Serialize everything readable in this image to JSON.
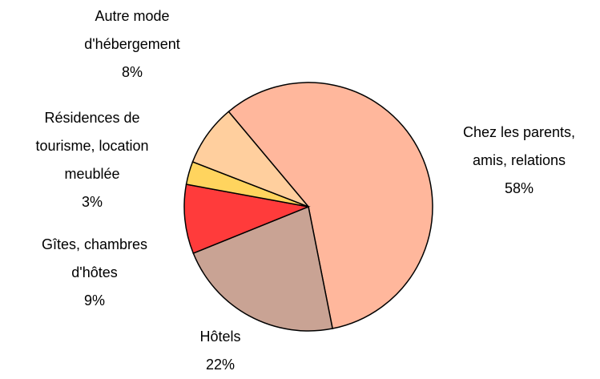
{
  "chart_data": {
    "type": "pie",
    "categories": [
      "Chez les parents, amis, relations",
      "Hôtels",
      "Gîtes, chambres d'hôtes",
      "Résidences de tourisme, location meublée",
      "Autre mode d'hébergement"
    ],
    "values": [
      58,
      22,
      9,
      3,
      8
    ],
    "value_labels": [
      "58%",
      "22%",
      "9%",
      "3%",
      "8%"
    ],
    "colors": [
      "#ffb79c",
      "#c9a394",
      "#ff3b3b",
      "#ffd45e",
      "#ffcf9e"
    ]
  }
}
